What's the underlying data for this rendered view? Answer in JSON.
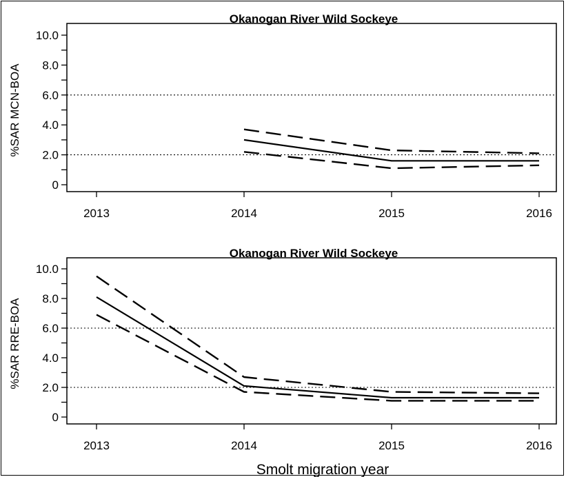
{
  "chart_data": [
    {
      "type": "line",
      "title": "Okanogan River Wild Sockeye",
      "ylabel": "%SAR MCN-BOA",
      "xlabel": "",
      "x_ticks": [
        "2013",
        "2014",
        "2015",
        "2016"
      ],
      "y_ticks": [
        "0",
        "2.0",
        "4.0",
        "6.0",
        "8.0",
        "10.0"
      ],
      "xlim": [
        2013,
        2016
      ],
      "ylim": [
        0,
        10
      ],
      "reference_lines": [
        2.0,
        6.0
      ],
      "series": [
        {
          "x": [
            2014,
            2015,
            2016
          ],
          "y": [
            3.0,
            1.6,
            1.6
          ],
          "style": "solid"
        },
        {
          "x": [
            2014,
            2015,
            2016
          ],
          "y": [
            3.7,
            2.3,
            2.1
          ],
          "style": "dashed"
        },
        {
          "x": [
            2014,
            2015,
            2016
          ],
          "y": [
            2.2,
            1.1,
            1.3
          ],
          "style": "dashed"
        }
      ]
    },
    {
      "type": "line",
      "title": "Okanogan River Wild Sockeye",
      "ylabel": "%SAR RRE-BOA",
      "xlabel": "Smolt migration year",
      "x_ticks": [
        "2013",
        "2014",
        "2015",
        "2016"
      ],
      "y_ticks": [
        "0",
        "2.0",
        "4.0",
        "6.0",
        "8.0",
        "10.0"
      ],
      "xlim": [
        2013,
        2016
      ],
      "ylim": [
        0,
        10
      ],
      "reference_lines": [
        2.0,
        6.0
      ],
      "series": [
        {
          "x": [
            2013,
            2014,
            2015,
            2016
          ],
          "y": [
            8.1,
            2.1,
            1.3,
            1.3
          ],
          "style": "solid"
        },
        {
          "x": [
            2013,
            2014,
            2015,
            2016
          ],
          "y": [
            9.5,
            2.7,
            1.7,
            1.6
          ],
          "style": "dashed"
        },
        {
          "x": [
            2013,
            2014,
            2015,
            2016
          ],
          "y": [
            6.9,
            1.7,
            1.1,
            1.1
          ],
          "style": "dashed"
        }
      ]
    }
  ]
}
